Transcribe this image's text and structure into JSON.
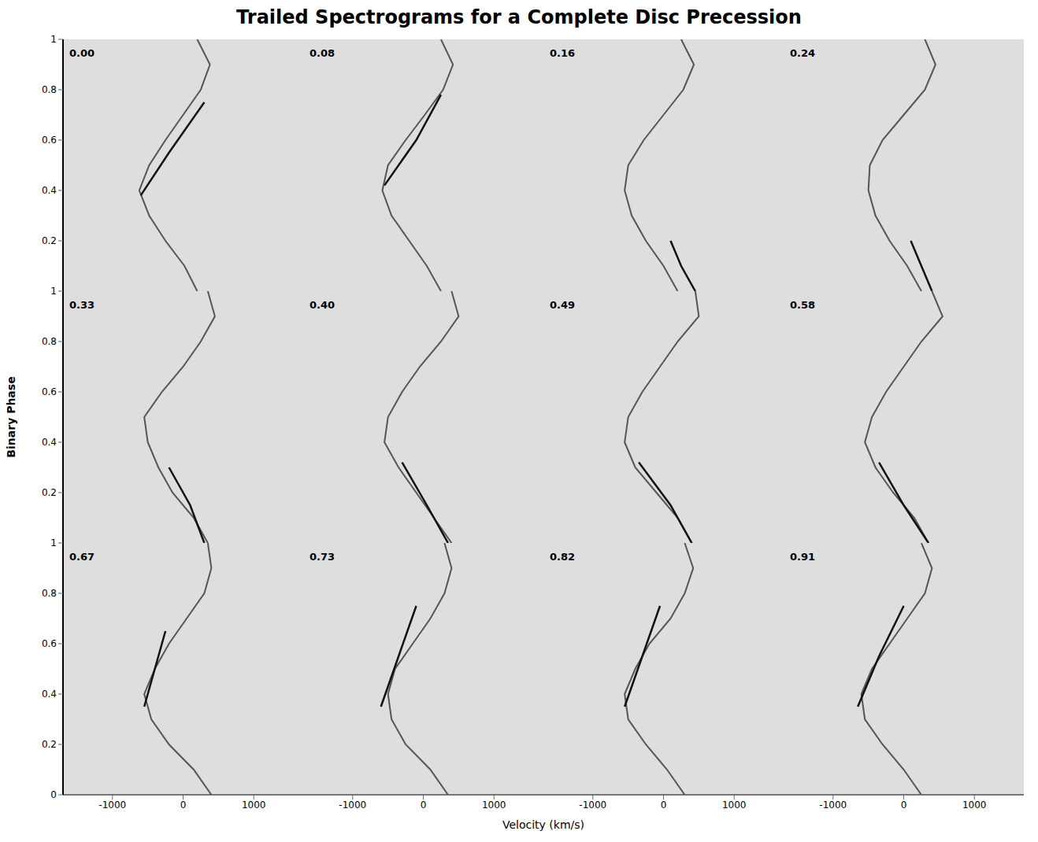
{
  "title": "Trailed Spectrograms for a Complete Disc Precession",
  "xlabel": "Velocity (km/s)",
  "ylabel": "Binary Phase",
  "chart_data": [
    {
      "type": "scatter",
      "title": "0.00",
      "xlim": [
        -1700,
        1700
      ],
      "xticks": [
        {
          "value": -1000,
          "label": "-1000"
        },
        0,
        1000
      ],
      "ylim": [
        0,
        1
      ],
      "yticks": [
        0.2,
        0.4,
        0.6,
        0.8,
        1
      ],
      "tick_labels": "y",
      "series": [
        {
          "color": "#555555",
          "line_style": "solid",
          "marker": "none",
          "x": [
            200,
            20,
            -250,
            -480,
            -620,
            -480,
            -250,
            0,
            250,
            380,
            200
          ],
          "values": [
            0,
            0.1,
            0.2,
            0.3,
            0.4,
            0.5,
            0.6,
            0.7,
            0.8,
            0.9,
            1
          ]
        },
        {
          "color": "#111111",
          "line_style": "solid",
          "marker": "none",
          "x": [
            -600,
            -200,
            300
          ],
          "values": [
            0.38,
            0.55,
            0.75
          ]
        }
      ]
    },
    {
      "type": "scatter",
      "title": "0.08",
      "xlim": [
        -1700,
        1700
      ],
      "xticks": [
        {
          "value": -1000,
          "label": "-1000"
        },
        0,
        1000
      ],
      "ylim": [
        0,
        1
      ],
      "yticks": [
        0.2,
        0.4,
        0.6,
        0.8,
        1
      ],
      "tick_labels": false,
      "series": [
        {
          "color": "#555555",
          "line_style": "solid",
          "marker": "none",
          "x": [
            250,
            50,
            -200,
            -450,
            -580,
            -500,
            -250,
            20,
            280,
            420,
            250
          ],
          "values": [
            0,
            0.1,
            0.2,
            0.3,
            0.4,
            0.5,
            0.6,
            0.7,
            0.8,
            0.9,
            1
          ]
        },
        {
          "color": "#111111",
          "line_style": "solid",
          "marker": "none",
          "x": [
            -550,
            -100,
            250
          ],
          "values": [
            0.42,
            0.6,
            0.78
          ]
        }
      ]
    },
    {
      "type": "scatter",
      "title": "0.16",
      "xlim": [
        -1700,
        1700
      ],
      "xticks": [
        {
          "value": -1000,
          "label": "-1000"
        },
        0,
        1000
      ],
      "ylim": [
        0,
        1
      ],
      "yticks": [
        0.2,
        0.4,
        0.6,
        0.8,
        1
      ],
      "tick_labels": false,
      "series": [
        {
          "color": "#555555",
          "line_style": "solid",
          "marker": "none",
          "x": [
            200,
            0,
            -250,
            -450,
            -550,
            -500,
            -280,
            0,
            280,
            430,
            250
          ],
          "values": [
            0,
            0.1,
            0.2,
            0.3,
            0.4,
            0.5,
            0.6,
            0.7,
            0.8,
            0.9,
            1
          ]
        },
        {
          "color": "#111111",
          "line_style": "solid",
          "marker": "none",
          "x": [
            450,
            250,
            100
          ],
          "values": [
            0,
            0.1,
            0.2
          ]
        }
      ]
    },
    {
      "type": "scatter",
      "title": "0.24",
      "xlim": [
        -1700,
        1700
      ],
      "xticks": [
        {
          "value": -1000,
          "label": "-1000"
        },
        0,
        1000
      ],
      "ylim": [
        0,
        1
      ],
      "yticks": [
        0.2,
        0.4,
        0.6,
        0.8,
        1
      ],
      "tick_labels": false,
      "series": [
        {
          "color": "#555555",
          "line_style": "solid",
          "marker": "none",
          "x": [
            250,
            50,
            -200,
            -400,
            -500,
            -480,
            -300,
            0,
            300,
            450,
            300
          ],
          "values": [
            0,
            0.1,
            0.2,
            0.3,
            0.4,
            0.5,
            0.6,
            0.7,
            0.8,
            0.9,
            1
          ]
        },
        {
          "color": "#111111",
          "line_style": "solid",
          "marker": "none",
          "x": [
            400,
            250,
            100
          ],
          "values": [
            0,
            0.1,
            0.2
          ]
        }
      ]
    },
    {
      "type": "scatter",
      "title": "0.33",
      "xlim": [
        -1700,
        1700
      ],
      "xticks": [
        {
          "value": -1000,
          "label": "-1000"
        },
        0,
        1000
      ],
      "ylim": [
        0,
        1
      ],
      "yticks": [
        0.2,
        0.4,
        0.6,
        0.8,
        1
      ],
      "tick_labels": "y",
      "series": [
        {
          "color": "#555555",
          "line_style": "solid",
          "marker": "none",
          "x": [
            350,
            150,
            -150,
            -350,
            -500,
            -550,
            -300,
            0,
            250,
            450,
            350
          ],
          "values": [
            0,
            0.1,
            0.2,
            0.3,
            0.4,
            0.5,
            0.6,
            0.7,
            0.8,
            0.9,
            1
          ]
        },
        {
          "color": "#111111",
          "line_style": "solid",
          "marker": "none",
          "x": [
            300,
            100,
            -200
          ],
          "values": [
            0,
            0.15,
            0.3
          ]
        }
      ]
    },
    {
      "type": "scatter",
      "title": "0.40",
      "xlim": [
        -1700,
        1700
      ],
      "xticks": [
        {
          "value": -1000,
          "label": "-1000"
        },
        0,
        1000
      ],
      "ylim": [
        0,
        1
      ],
      "yticks": [
        0.2,
        0.4,
        0.6,
        0.8,
        1
      ],
      "tick_labels": false,
      "series": [
        {
          "color": "#555555",
          "line_style": "solid",
          "marker": "none",
          "x": [
            400,
            150,
            -100,
            -350,
            -550,
            -500,
            -300,
            -50,
            250,
            500,
            400
          ],
          "values": [
            0,
            0.1,
            0.2,
            0.3,
            0.4,
            0.5,
            0.6,
            0.7,
            0.8,
            0.9,
            1
          ]
        },
        {
          "color": "#111111",
          "line_style": "solid",
          "marker": "none",
          "x": [
            350,
            50,
            -300
          ],
          "values": [
            0,
            0.15,
            0.32
          ]
        }
      ]
    },
    {
      "type": "scatter",
      "title": "0.49",
      "xlim": [
        -1700,
        1700
      ],
      "xticks": [
        {
          "value": -1000,
          "label": "-1000"
        },
        0,
        1000
      ],
      "ylim": [
        0,
        1
      ],
      "yticks": [
        0.2,
        0.4,
        0.6,
        0.8,
        1
      ],
      "tick_labels": false,
      "series": [
        {
          "color": "#555555",
          "line_style": "solid",
          "marker": "none",
          "x": [
            400,
            200,
            -100,
            -400,
            -550,
            -500,
            -300,
            -50,
            200,
            500,
            450
          ],
          "values": [
            0,
            0.1,
            0.2,
            0.3,
            0.4,
            0.5,
            0.6,
            0.7,
            0.8,
            0.9,
            1
          ]
        },
        {
          "color": "#111111",
          "line_style": "solid",
          "marker": "none",
          "x": [
            400,
            100,
            -350
          ],
          "values": [
            0,
            0.15,
            0.32
          ]
        }
      ]
    },
    {
      "type": "scatter",
      "title": "0.58",
      "xlim": [
        -1700,
        1700
      ],
      "xticks": [
        {
          "value": -1000,
          "label": "-1000"
        },
        0,
        1000
      ],
      "ylim": [
        0,
        1
      ],
      "yticks": [
        0.2,
        0.4,
        0.6,
        0.8,
        1
      ],
      "tick_labels": false,
      "series": [
        {
          "color": "#555555",
          "line_style": "solid",
          "marker": "none",
          "x": [
            350,
            150,
            -150,
            -400,
            -550,
            -450,
            -250,
            0,
            250,
            550,
            400
          ],
          "values": [
            0,
            0.1,
            0.2,
            0.3,
            0.4,
            0.5,
            0.6,
            0.7,
            0.8,
            0.9,
            1
          ]
        },
        {
          "color": "#111111",
          "line_style": "solid",
          "marker": "none",
          "x": [
            350,
            0,
            -350
          ],
          "values": [
            0,
            0.15,
            0.32
          ]
        }
      ]
    },
    {
      "type": "scatter",
      "title": "0.67",
      "xlim": [
        -1700,
        1700
      ],
      "xticks": [
        {
          "value": -1000,
          "label": "-1000"
        },
        0,
        1000
      ],
      "ylim": [
        0,
        1
      ],
      "yticks": [
        0,
        0.2,
        0.4,
        0.6,
        0.8,
        1
      ],
      "tick_labels": true,
      "series": [
        {
          "color": "#555555",
          "line_style": "solid",
          "marker": "none",
          "x": [
            400,
            150,
            -200,
            -450,
            -550,
            -400,
            -200,
            50,
            300,
            400,
            350
          ],
          "values": [
            0,
            0.1,
            0.2,
            0.3,
            0.4,
            0.5,
            0.6,
            0.7,
            0.8,
            0.9,
            1
          ]
        },
        {
          "color": "#111111",
          "line_style": "solid",
          "marker": "none",
          "x": [
            -550,
            -400,
            -250
          ],
          "values": [
            0.35,
            0.5,
            0.65
          ]
        }
      ]
    },
    {
      "type": "scatter",
      "title": "0.73",
      "xlim": [
        -1700,
        1700
      ],
      "xticks": [
        {
          "value": -1000,
          "label": "-1000"
        },
        0,
        1000
      ],
      "ylim": [
        0,
        1
      ],
      "yticks": [
        0,
        0.2,
        0.4,
        0.6,
        0.8,
        1
      ],
      "tick_labels": "x",
      "series": [
        {
          "color": "#555555",
          "line_style": "solid",
          "marker": "none",
          "x": [
            350,
            100,
            -250,
            -450,
            -500,
            -400,
            -150,
            100,
            300,
            400,
            300
          ],
          "values": [
            0,
            0.1,
            0.2,
            0.3,
            0.4,
            0.5,
            0.6,
            0.7,
            0.8,
            0.9,
            1
          ]
        },
        {
          "color": "#111111",
          "line_style": "solid",
          "marker": "none",
          "x": [
            -600,
            -350,
            -100
          ],
          "values": [
            0.35,
            0.55,
            0.75
          ]
        }
      ]
    },
    {
      "type": "scatter",
      "title": "0.82",
      "xlim": [
        -1700,
        1700
      ],
      "xticks": [
        {
          "value": -1000,
          "label": "-1000"
        },
        0,
        1000
      ],
      "ylim": [
        0,
        1
      ],
      "yticks": [
        0,
        0.2,
        0.4,
        0.6,
        0.8,
        1
      ],
      "tick_labels": "x",
      "series": [
        {
          "color": "#555555",
          "line_style": "solid",
          "marker": "none",
          "x": [
            300,
            50,
            -250,
            -500,
            -550,
            -400,
            -200,
            100,
            300,
            420,
            300
          ],
          "values": [
            0,
            0.1,
            0.2,
            0.3,
            0.4,
            0.5,
            0.6,
            0.7,
            0.8,
            0.9,
            1
          ]
        },
        {
          "color": "#111111",
          "line_style": "solid",
          "marker": "none",
          "x": [
            -550,
            -300,
            -50
          ],
          "values": [
            0.35,
            0.55,
            0.75
          ]
        }
      ]
    },
    {
      "type": "scatter",
      "title": "0.91",
      "xlim": [
        -1700,
        1700
      ],
      "xticks": [
        {
          "value": -1000,
          "label": "-1000"
        },
        0,
        1000
      ],
      "ylim": [
        0,
        1
      ],
      "yticks": [
        0,
        0.2,
        0.4,
        0.6,
        0.8,
        1
      ],
      "tick_labels": "x",
      "series": [
        {
          "color": "#555555",
          "line_style": "solid",
          "marker": "none",
          "x": [
            250,
            0,
            -300,
            -550,
            -600,
            -450,
            -200,
            50,
            300,
            400,
            250
          ],
          "values": [
            0,
            0.1,
            0.2,
            0.3,
            0.4,
            0.5,
            0.6,
            0.7,
            0.8,
            0.9,
            1
          ]
        },
        {
          "color": "#111111",
          "line_style": "solid",
          "marker": "none",
          "x": [
            -650,
            -350,
            0
          ],
          "values": [
            0.35,
            0.55,
            0.75
          ]
        }
      ]
    }
  ]
}
